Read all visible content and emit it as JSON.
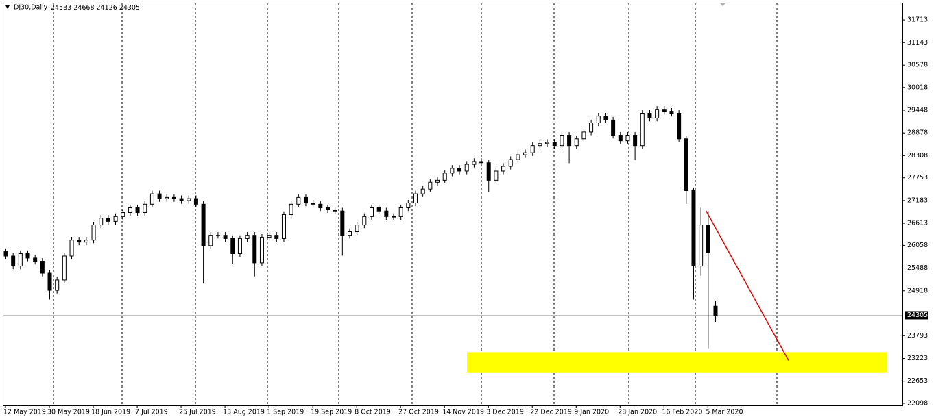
{
  "chart_data": {
    "type": "candlestick",
    "symbol": "DJ30,Daily",
    "header_values": [
      24533,
      24668,
      24126,
      24305
    ],
    "categories": [
      "12 May 2019",
      null,
      null,
      null,
      null,
      null,
      "30 May 2019",
      null,
      null,
      null,
      null,
      null,
      "18 Jun 2019",
      null,
      null,
      null,
      null,
      null,
      "7 Jul 2019",
      null,
      null,
      null,
      null,
      null,
      "25 Jul 2019",
      null,
      null,
      null,
      null,
      null,
      "13 Aug 2019",
      null,
      null,
      null,
      null,
      null,
      "1 Sep 2019",
      null,
      null,
      null,
      null,
      null,
      "19 Sep 2019",
      null,
      null,
      null,
      null,
      null,
      "8 Oct 2019",
      null,
      null,
      null,
      null,
      null,
      "27 Oct 2019",
      null,
      null,
      null,
      null,
      null,
      "14 Nov 2019",
      null,
      null,
      null,
      null,
      null,
      "3 Dec 2019",
      null,
      null,
      null,
      null,
      null,
      "22 Dec 2019",
      null,
      null,
      null,
      null,
      null,
      "9 Jan 2020",
      null,
      null,
      null,
      null,
      null,
      "28 Jan 2020",
      null,
      null,
      null,
      null,
      null,
      "16 Feb 2020",
      null,
      null,
      null,
      null,
      null,
      "5 Mar 2020",
      null
    ],
    "open": [
      25900,
      25790,
      25540,
      25850,
      25740,
      25660,
      25360,
      24930,
      25190,
      25790,
      26190,
      26140,
      26190,
      26570,
      26740,
      26660,
      26780,
      26880,
      27000,
      26880,
      27090,
      27350,
      27230,
      27260,
      27230,
      27180,
      27230,
      27090,
      26050,
      26310,
      26310,
      26230,
      25850,
      26230,
      26310,
      25620,
      26260,
      26310,
      26230,
      26830,
      27090,
      27260,
      27120,
      27090,
      27000,
      26950,
      26920,
      26310,
      26400,
      26570,
      26780,
      27000,
      26920,
      26780,
      26780,
      27000,
      27120,
      27350,
      27470,
      27640,
      27690,
      27870,
      27990,
      27920,
      28090,
      28160,
      28130,
      27690,
      27920,
      28040,
      28210,
      28330,
      28380,
      28560,
      28610,
      28640,
      28560,
      28820,
      28560,
      28730,
      28900,
      29130,
      29300,
      29200,
      28820,
      28680,
      28820,
      28560,
      29370,
      29250,
      29470,
      29420,
      29370,
      28730,
      27430,
      25540,
      26570,
      24533
    ],
    "high": [
      25980,
      25870,
      25930,
      25930,
      25820,
      25740,
      25440,
      25270,
      25870,
      26270,
      26270,
      26270,
      26650,
      26820,
      26820,
      26860,
      26960,
      27080,
      27080,
      27170,
      27430,
      27430,
      27340,
      27340,
      27310,
      27310,
      27310,
      27170,
      26390,
      26390,
      26390,
      26310,
      26310,
      26390,
      26390,
      26340,
      26390,
      26390,
      26910,
      27170,
      27340,
      27340,
      27200,
      27170,
      27080,
      27030,
      27000,
      26480,
      26650,
      26860,
      27080,
      27080,
      27000,
      26860,
      27080,
      27200,
      27430,
      27550,
      27720,
      27770,
      27950,
      28070,
      28070,
      28170,
      28240,
      28240,
      28210,
      28000,
      28120,
      28290,
      28410,
      28460,
      28640,
      28690,
      28720,
      28720,
      28900,
      28900,
      28810,
      28980,
      29210,
      29380,
      29380,
      29280,
      28900,
      28900,
      28900,
      29450,
      29450,
      29550,
      29550,
      29500,
      29450,
      28810,
      27510,
      27000,
      26920,
      24668
    ],
    "low": [
      25710,
      25460,
      25460,
      25660,
      25580,
      25280,
      24700,
      24850,
      25110,
      25710,
      26060,
      26060,
      26110,
      26490,
      26580,
      26580,
      26700,
      26800,
      26800,
      26800,
      27010,
      27150,
      27150,
      27150,
      27100,
      27100,
      27010,
      25100,
      25970,
      26230,
      26150,
      25600,
      25770,
      26150,
      25280,
      25540,
      26180,
      26150,
      26150,
      26750,
      27010,
      27040,
      27010,
      26920,
      26870,
      26840,
      25800,
      26230,
      26320,
      26490,
      26700,
      26840,
      26700,
      26700,
      26700,
      26920,
      27040,
      27270,
      27390,
      27560,
      27610,
      27790,
      27840,
      27840,
      28010,
      28050,
      27400,
      27610,
      27840,
      27960,
      28130,
      28250,
      28300,
      28480,
      28530,
      28480,
      28480,
      28120,
      28480,
      28650,
      28820,
      29050,
      29120,
      28740,
      28600,
      28600,
      28200,
      28480,
      29170,
      29170,
      29340,
      29290,
      28650,
      27100,
      24700,
      25300,
      23460,
      24126
    ],
    "close": [
      25790,
      25540,
      25850,
      25740,
      25660,
      25360,
      24930,
      25190,
      25790,
      26190,
      26140,
      26190,
      26570,
      26740,
      26660,
      26780,
      26880,
      27000,
      26880,
      27090,
      27350,
      27230,
      27260,
      27230,
      27180,
      27230,
      27090,
      26050,
      26310,
      26310,
      26230,
      25850,
      26230,
      26310,
      25620,
      26260,
      26310,
      26230,
      26830,
      27090,
      27260,
      27120,
      27090,
      27000,
      26950,
      26920,
      26310,
      26400,
      26570,
      26780,
      27000,
      26920,
      26780,
      26780,
      27000,
      27120,
      27350,
      27470,
      27640,
      27690,
      27870,
      27990,
      27920,
      28090,
      28160,
      28130,
      27690,
      27920,
      28040,
      28210,
      28330,
      28380,
      28560,
      28610,
      28640,
      28560,
      28820,
      28560,
      28730,
      28900,
      29130,
      29300,
      29200,
      28820,
      28680,
      28820,
      28560,
      29370,
      29250,
      29470,
      29420,
      29370,
      28730,
      27430,
      25540,
      26570,
      25880,
      24305
    ],
    "ylim": [
      22046,
      32127
    ],
    "yticks": [
      31713,
      31143,
      30578,
      30018,
      29448,
      28878,
      28308,
      27753,
      27183,
      26613,
      26058,
      25488,
      24918,
      23793,
      23223,
      22653,
      22098
    ],
    "last_price": 24305,
    "grid": true,
    "zone": {
      "low": 22858,
      "high": 23378,
      "color": "#ffff00"
    },
    "trendline": {
      "start": 26917,
      "end": 23169,
      "color": "#e00000"
    }
  }
}
